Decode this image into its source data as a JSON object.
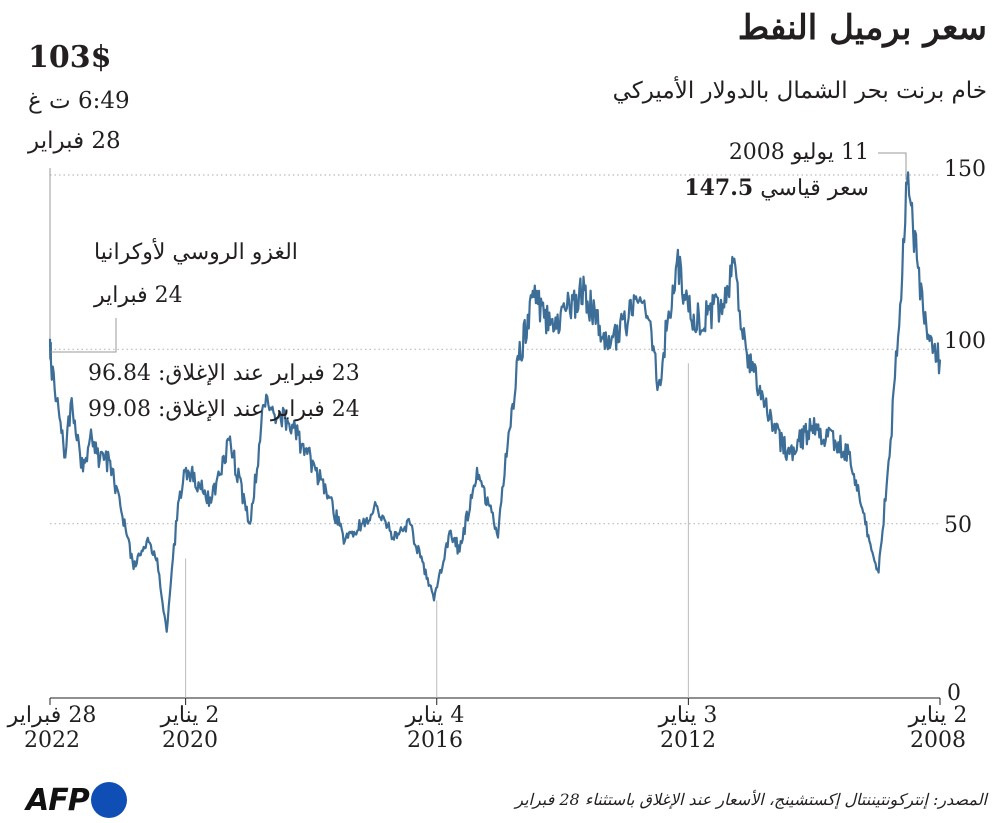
{
  "title": "سعر برميل النفط",
  "subtitle": "خام برنت بحر الشمال بالدولار الأميركي",
  "current": {
    "price": "103$",
    "time": "6:49 ت غ",
    "date": "28 فبراير"
  },
  "annotations": {
    "peak_date": "11 يوليو 2008",
    "peak_label": "سعر قياسي",
    "peak_value": "147.5",
    "invasion_title": "الغزو الروسي لأوكرانيا",
    "invasion_date": "24 فبراير",
    "close_23": "23 فبراير عند الإغلاق: 96.84",
    "close_24": "24 فبراير عند الإغلاق: 99.08"
  },
  "source": "المصدر: إنتركونتيننتال إكستشينج، الأسعار عند الإغلاق باستثناء 28 فبراير",
  "logo_text": "AFP",
  "colors": {
    "line": "#3d6e97",
    "grid": "#bbbbbb",
    "accent_logo": "#0e4eb5"
  },
  "chart_data": {
    "type": "line",
    "title": "سعر برميل النفط",
    "subtitle": "خام برنت بحر الشمال بالدولار الأميركي",
    "ylabel": "",
    "xlabel": "",
    "ylim": [
      0,
      155
    ],
    "yticks": [
      0,
      50,
      100,
      150
    ],
    "xlim": [
      "2008-01-02",
      "2022-02-28"
    ],
    "x_axis_direction": "right-to-left",
    "grid": "horizontal dotted",
    "xticks": [
      {
        "date": "2008-01-02",
        "label_top": "2 يناير",
        "label_bottom": "2008"
      },
      {
        "date": "2012-01-03",
        "label_top": "3 يناير",
        "label_bottom": "2012"
      },
      {
        "date": "2016-01-04",
        "label_top": "4 يناير",
        "label_bottom": "2016"
      },
      {
        "date": "2020-01-02",
        "label_top": "2 يناير",
        "label_bottom": "2020"
      },
      {
        "date": "2022-02-28",
        "label_top": "28 فبراير",
        "label_bottom": "2022"
      }
    ],
    "series": [
      {
        "x": [
          "2008-01-02",
          "2008-03-15",
          "2008-05-15",
          "2008-07-11",
          "2008-08-20",
          "2008-10-15",
          "2008-12-24",
          "2009-02-15",
          "2009-06-15",
          "2009-10-15",
          "2010-01-15",
          "2010-05-25",
          "2010-08-15",
          "2010-12-31",
          "2011-02-20",
          "2011-04-11",
          "2011-06-15",
          "2011-09-15",
          "2011-12-15",
          "2012-03-10",
          "2012-06-25",
          "2012-09-15",
          "2012-12-15",
          "2013-04-15",
          "2013-08-28",
          "2013-12-15",
          "2014-03-15",
          "2014-06-19",
          "2014-09-15",
          "2014-11-30",
          "2015-01-13",
          "2015-05-15",
          "2015-08-24",
          "2015-10-15",
          "2016-01-20",
          "2016-06-08",
          "2016-09-15",
          "2016-12-15",
          "2017-06-21",
          "2017-09-25",
          "2018-01-25",
          "2018-05-22",
          "2018-10-03",
          "2018-12-24",
          "2019-04-25",
          "2019-08-07",
          "2019-12-31",
          "2020-02-15",
          "2020-04-21",
          "2020-06-15",
          "2020-08-15",
          "2020-10-30",
          "2021-01-15",
          "2021-03-15",
          "2021-05-15",
          "2021-07-05",
          "2021-08-20",
          "2021-10-25",
          "2021-12-01",
          "2022-01-15",
          "2022-02-23",
          "2022-02-24",
          "2022-02-28"
        ],
        "y": [
          97,
          103,
          126,
          147.5,
          113,
          74,
          36,
          45,
          70,
          75,
          78,
          70,
          76,
          94,
          103,
          126,
          113,
          110,
          108,
          125,
          90,
          114,
          109,
          100,
          117,
          111,
          107,
          115,
          97,
          70,
          46,
          66,
          42,
          48,
          28,
          50,
          46,
          55,
          45,
          58,
          70,
          80,
          84,
          50,
          74,
          56,
          66,
          56,
          19,
          40,
          45,
          37,
          55,
          68,
          68,
          77,
          65,
          86,
          69,
          86,
          96.84,
          99.08,
          103
        ]
      }
    ]
  }
}
